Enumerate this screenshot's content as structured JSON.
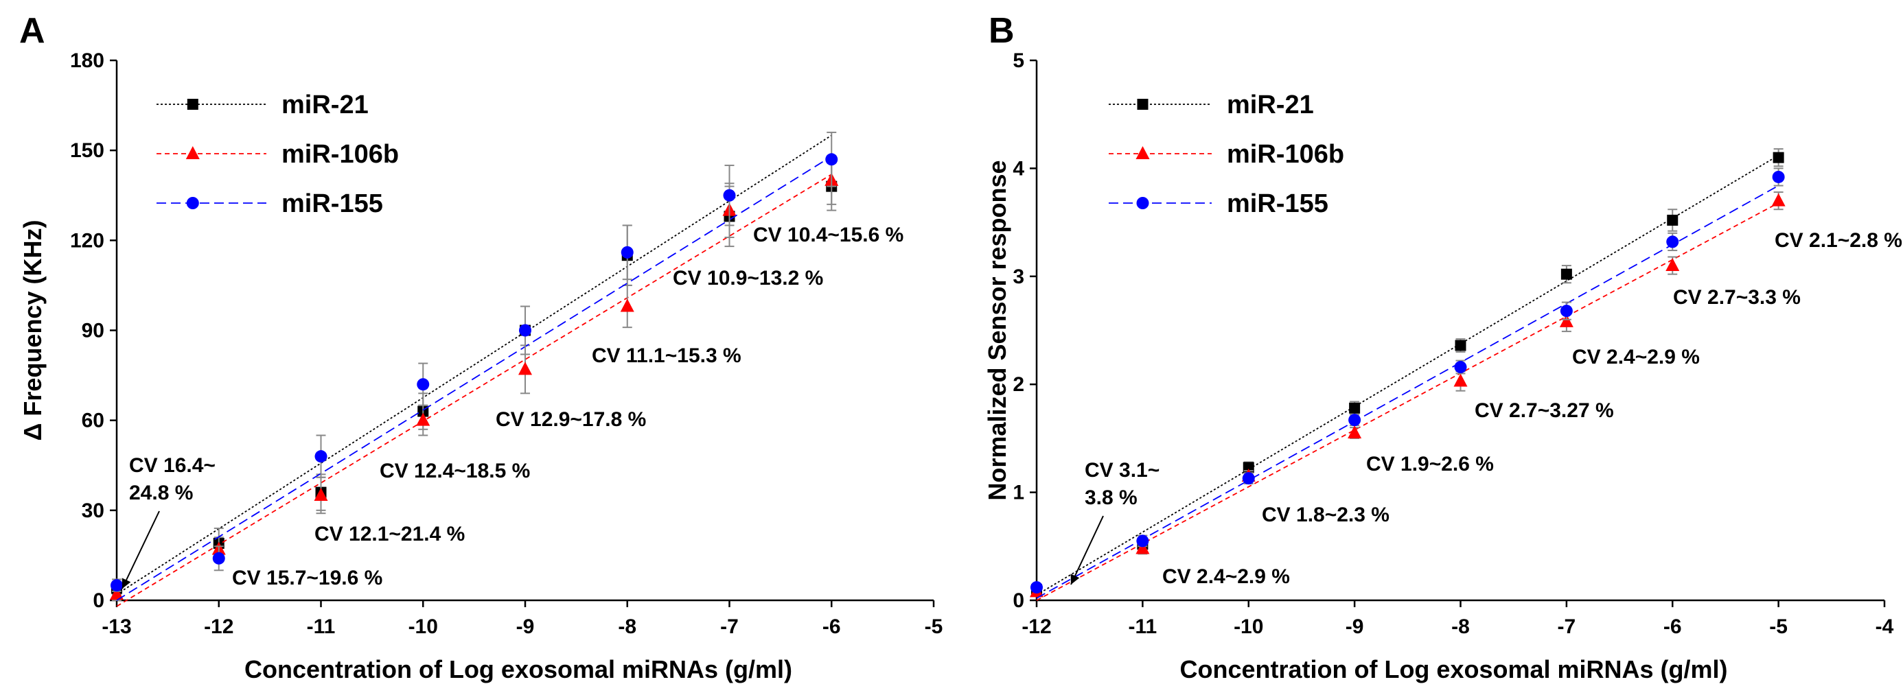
{
  "chart_data": [
    {
      "type": "scatter",
      "panel": "A",
      "xlabel": "Concentration of Log exosomal miRNAs (g/ml)",
      "ylabel": "Δ Frequency (KHz)",
      "xlim": [
        -13,
        -5
      ],
      "ylim": [
        0,
        180
      ],
      "xticks": [
        -13,
        -12,
        -11,
        -10,
        -9,
        -8,
        -7,
        -6,
        -5
      ],
      "yticks": [
        0,
        30,
        60,
        90,
        120,
        150,
        180
      ],
      "legend_position": "top-left",
      "series": [
        {
          "name": "miR-21",
          "color": "#000000",
          "marker": "square",
          "dash": "dotted",
          "x": [
            -13,
            -12,
            -11,
            -10,
            -9,
            -8,
            -7,
            -6
          ],
          "y": [
            4,
            19,
            36,
            63,
            90,
            115,
            128,
            138
          ],
          "err": [
            2,
            5,
            6,
            6,
            8,
            10,
            10,
            8
          ],
          "fit": [
            [
              -13,
              2
            ],
            [
              -6,
              155
            ]
          ]
        },
        {
          "name": "miR-106b",
          "color": "#ff0000",
          "marker": "triangle",
          "dash": "dashed",
          "x": [
            -13,
            -12,
            -11,
            -10,
            -9,
            -8,
            -7,
            -6
          ],
          "y": [
            2,
            17,
            35,
            60,
            77,
            98,
            130,
            140
          ],
          "err": [
            2,
            4,
            6,
            5,
            8,
            7,
            9,
            8
          ],
          "fit": [
            [
              -13,
              -2
            ],
            [
              -6,
              142
            ]
          ]
        },
        {
          "name": "miR-155",
          "color": "#0000ff",
          "marker": "circle",
          "dash": "longdash",
          "x": [
            -13,
            -12,
            -11,
            -10,
            -9,
            -8,
            -7,
            -6
          ],
          "y": [
            5,
            14,
            48,
            72,
            90,
            116,
            135,
            147
          ],
          "err": [
            2,
            4,
            7,
            7,
            8,
            9,
            10,
            9
          ],
          "fit": [
            [
              -13,
              0
            ],
            [
              -6,
              148
            ]
          ]
        }
      ],
      "annotations": [
        {
          "line1": "CV 16.4~",
          "line2": "24.8 %"
        },
        {
          "text": "CV 15.7~19.6 %"
        },
        {
          "text": "CV 12.1~21.4 %"
        },
        {
          "text": "CV 12.4~18.5 %"
        },
        {
          "text": "CV 12.9~17.8 %"
        },
        {
          "text": "CV 11.1~15.3 %"
        },
        {
          "text": "CV 10.9~13.2 %"
        },
        {
          "text": "CV 10.4~15.6 %"
        }
      ]
    },
    {
      "type": "scatter",
      "panel": "B",
      "xlabel": "Concentration of Log exosomal miRNAs (g/ml)",
      "ylabel": "Normalized Sensor response",
      "xlim": [
        -12,
        -4
      ],
      "ylim": [
        0,
        5
      ],
      "xticks": [
        -12,
        -11,
        -10,
        -9,
        -8,
        -7,
        -6,
        -5,
        -4
      ],
      "yticks": [
        0,
        1,
        2,
        3,
        4,
        5
      ],
      "legend_position": "top-left",
      "series": [
        {
          "name": "miR-21",
          "color": "#000000",
          "marker": "square",
          "dash": "dotted",
          "x": [
            -12,
            -11,
            -10,
            -9,
            -8,
            -7,
            -6,
            -5
          ],
          "y": [
            0.1,
            0.52,
            1.23,
            1.78,
            2.36,
            3.02,
            3.52,
            4.1
          ],
          "err": [
            0.03,
            0.05,
            0.05,
            0.06,
            0.06,
            0.08,
            0.1,
            0.08
          ],
          "fit": [
            [
              -12,
              0.05
            ],
            [
              -5,
              4.12
            ]
          ]
        },
        {
          "name": "miR-106b",
          "color": "#ff0000",
          "marker": "triangle",
          "dash": "dashed",
          "x": [
            -12,
            -11,
            -10,
            -9,
            -8,
            -7,
            -6,
            -5
          ],
          "y": [
            0.08,
            0.48,
            1.15,
            1.55,
            2.03,
            2.58,
            3.1,
            3.7
          ],
          "err": [
            0.03,
            0.05,
            0.05,
            0.05,
            0.09,
            0.09,
            0.08,
            0.08
          ],
          "fit": [
            [
              -12,
              0.0
            ],
            [
              -5,
              3.68
            ]
          ]
        },
        {
          "name": "miR-155",
          "color": "#0000ff",
          "marker": "circle",
          "dash": "longdash",
          "x": [
            -12,
            -11,
            -10,
            -9,
            -8,
            -7,
            -6,
            -5
          ],
          "y": [
            0.12,
            0.55,
            1.13,
            1.67,
            2.16,
            2.68,
            3.32,
            3.92
          ],
          "err": [
            0.03,
            0.05,
            0.05,
            0.05,
            0.06,
            0.08,
            0.08,
            0.08
          ],
          "fit": [
            [
              -12,
              0.02
            ],
            [
              -5,
              3.84
            ]
          ]
        }
      ],
      "annotations": [
        {
          "line1": "CV 3.1~",
          "line2": "3.8 %"
        },
        {
          "text": "CV 2.4~2.9 %"
        },
        {
          "text": "CV 1.8~2.3 %"
        },
        {
          "text": "CV 1.9~2.6 %"
        },
        {
          "text": "CV 2.7~3.27 %"
        },
        {
          "text": "CV 2.4~2.9 %"
        },
        {
          "text": "CV 2.7~3.3 %"
        },
        {
          "text": "CV 2.1~2.8 %"
        }
      ]
    }
  ]
}
